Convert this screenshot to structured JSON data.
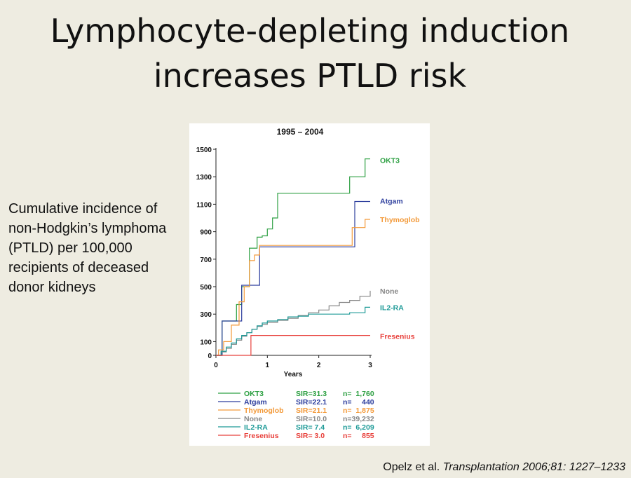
{
  "slide": {
    "title_line1": "Lymphocyte-depleting induction",
    "title_line2": "increases PTLD risk",
    "caption": "Cumulative incidence of non-Hodgkin’s lymphoma (PTLD) per 100,000 recipients of deceased donor kidneys",
    "citation_authors": "Opelz et al. ",
    "citation_journal": "Transplantation 2006;81: 1227–1233"
  },
  "chart_data": {
    "type": "line",
    "title": "1995 – 2004",
    "xlabel": "Years",
    "ylabel": "",
    "xlim": [
      0,
      3
    ],
    "ylim": [
      0,
      1500
    ],
    "xticks": [
      0,
      1,
      2,
      3
    ],
    "yticks": [
      0,
      100,
      300,
      500,
      700,
      900,
      1100,
      1300,
      1500
    ],
    "grid": false,
    "step": true,
    "legend_position": "bottom",
    "series": [
      {
        "name": "OKT3",
        "color": "#2ea043",
        "sir": "SIR=31.3",
        "n": "n=  1,760",
        "x": [
          0,
          0.12,
          0.25,
          0.4,
          0.5,
          0.65,
          0.8,
          0.9,
          1.0,
          1.1,
          1.2,
          2.2,
          2.6,
          2.9,
          3.0
        ],
        "y": [
          0,
          250,
          250,
          370,
          500,
          780,
          860,
          870,
          920,
          1000,
          1180,
          1180,
          1300,
          1430,
          1430
        ]
      },
      {
        "name": "Atgam",
        "color": "#2e3f9e",
        "sir": "SIR=22.1",
        "n": "n=     440",
        "x": [
          0,
          0.12,
          0.2,
          0.5,
          0.85,
          2.65,
          2.7,
          3.0
        ],
        "y": [
          0,
          250,
          250,
          510,
          790,
          790,
          1120,
          1120
        ]
      },
      {
        "name": "Thymoglob",
        "color": "#f39a3a",
        "sir": "SIR=21.1",
        "n": "n=  1,875",
        "x": [
          0,
          0.05,
          0.15,
          0.3,
          0.45,
          0.55,
          0.65,
          0.75,
          0.85,
          1.0,
          1.1,
          1.2,
          1.8,
          2.3,
          2.65,
          2.75,
          2.9,
          3.0
        ],
        "y": [
          0,
          40,
          100,
          220,
          390,
          500,
          690,
          730,
          800,
          800,
          800,
          800,
          800,
          800,
          930,
          930,
          990,
          990
        ]
      },
      {
        "name": "None",
        "color": "#888888",
        "sir": "SIR=10.0",
        "n": "n=39,232",
        "x": [
          0,
          0.1,
          0.2,
          0.3,
          0.4,
          0.5,
          0.6,
          0.7,
          0.8,
          0.9,
          1.0,
          1.2,
          1.4,
          1.6,
          1.8,
          2.0,
          2.2,
          2.4,
          2.6,
          2.8,
          3.0
        ],
        "y": [
          0,
          25,
          50,
          80,
          110,
          140,
          165,
          190,
          210,
          225,
          240,
          255,
          270,
          290,
          310,
          330,
          360,
          385,
          400,
          430,
          470
        ]
      },
      {
        "name": "IL2-RA",
        "color": "#1d9a97",
        "sir": "SIR=  7.4",
        "n": "n=  6,209",
        "x": [
          0,
          0.1,
          0.2,
          0.3,
          0.4,
          0.5,
          0.6,
          0.7,
          0.8,
          0.9,
          1.0,
          1.2,
          1.4,
          1.6,
          1.8,
          2.0,
          2.2,
          2.6,
          2.9,
          3.0
        ],
        "y": [
          0,
          30,
          60,
          90,
          120,
          145,
          165,
          190,
          215,
          235,
          250,
          260,
          280,
          285,
          300,
          300,
          300,
          310,
          350,
          350
        ]
      },
      {
        "name": "Fresenius",
        "color": "#e8413c",
        "sir": "SIR=  3.0",
        "n": "n=     855",
        "x": [
          0,
          0.65,
          0.68,
          3.0
        ],
        "y": [
          0,
          0,
          145,
          145
        ]
      }
    ]
  }
}
